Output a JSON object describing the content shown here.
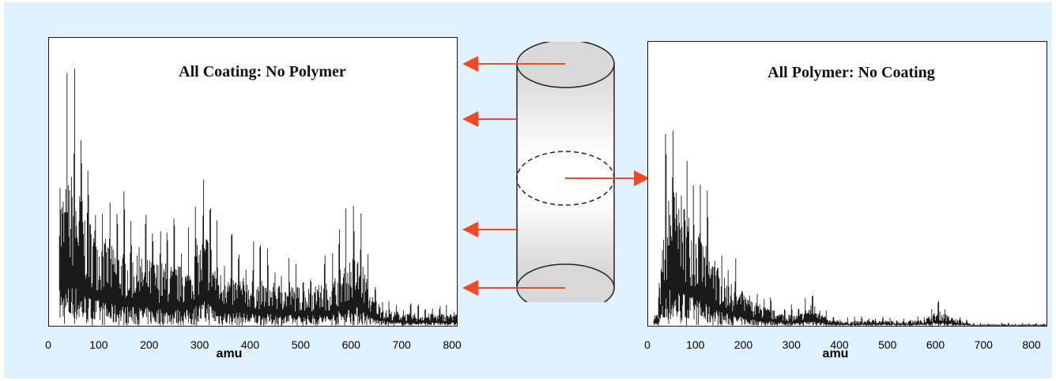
{
  "colors": {
    "background": "#e1f1fd",
    "trace": "#1a1a1a",
    "arrow": "#f04a25",
    "cylinder_cap": "#d8d8d8"
  },
  "diagram": {
    "description_icons": [
      "cylinder-icon",
      "arrow-right-icon",
      "arrow-left-icon"
    ]
  },
  "chart_data": [
    {
      "type": "line",
      "title": "All Coating: No Polymer",
      "xlabel": "amu",
      "ylabel": "",
      "xlim": [
        0,
        800
      ],
      "xticks": [
        0,
        100,
        200,
        300,
        400,
        500,
        600,
        700,
        800
      ],
      "grid": false,
      "series": [
        {
          "x": [
            30,
            45,
            60,
            75,
            90,
            105,
            120,
            150,
            180,
            210,
            240,
            270,
            290,
            310,
            330,
            360,
            400,
            450,
            500,
            550,
            575,
            590,
            610,
            630,
            660,
            700,
            750,
            800
          ],
          "values": [
            90,
            100,
            88,
            72,
            66,
            58,
            52,
            48,
            44,
            42,
            40,
            38,
            52,
            62,
            36,
            32,
            30,
            27,
            25,
            28,
            40,
            45,
            44,
            20,
            10,
            8,
            8,
            8
          ]
        }
      ]
    },
    {
      "type": "line",
      "title": "All Polymer: No Coating",
      "xlabel": "amu",
      "ylabel": "",
      "xlim": [
        0,
        800
      ],
      "xticks": [
        0,
        100,
        200,
        300,
        400,
        500,
        600,
        700,
        800
      ],
      "grid": false,
      "series": [
        {
          "x": [
            20,
            30,
            45,
            60,
            75,
            90,
            110,
            130,
            150,
            170,
            200,
            230,
            260,
            300,
            330,
            360,
            400,
            450,
            500,
            550,
            580,
            610,
            650,
            700,
            750,
            800
          ],
          "values": [
            8,
            60,
            95,
            88,
            80,
            70,
            55,
            45,
            32,
            26,
            18,
            13,
            9,
            7,
            15,
            4,
            3,
            4,
            3,
            4,
            10,
            5,
            1,
            1,
            1,
            1
          ]
        }
      ]
    }
  ]
}
